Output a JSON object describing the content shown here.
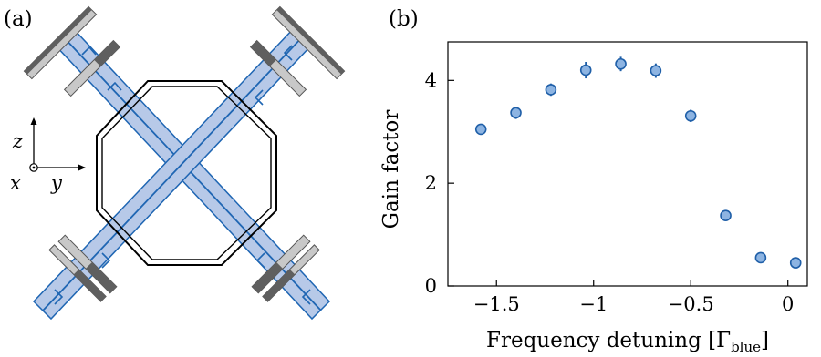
{
  "panels": {
    "a": {
      "label": "(a)"
    },
    "b": {
      "label": "(b)"
    }
  },
  "axes_inset": {
    "z": "z",
    "x": "x",
    "y": "y"
  },
  "colors": {
    "beam_fill": "#b7c9e8",
    "beam_edge": "#1f66b3",
    "mirror_light": "#c8c8c8",
    "mirror_dark": "#5f5f5f",
    "marker_fill": "#8db4e2",
    "marker_edge": "#1f5fa8"
  },
  "chart_data": {
    "type": "scatter",
    "title": "",
    "xlabel": "Frequency detuning [Γ_blue]",
    "xlabel_main": "Frequency detuning [Γ",
    "xlabel_sub": "blue",
    "xlabel_close": "]",
    "ylabel": "Gain factor",
    "xlim": [
      -1.75,
      0.1
    ],
    "ylim": [
      0,
      4.75
    ],
    "xticks": [
      -1.5,
      -1,
      -0.5,
      0
    ],
    "xtick_labels": [
      "−1.5",
      "−1",
      "−0.5",
      "0"
    ],
    "yticks": [
      0,
      2,
      4
    ],
    "ytick_labels": [
      "0",
      "2",
      "4"
    ],
    "grid": false,
    "series": [
      {
        "x": [
          -1.58,
          -1.4,
          -1.22,
          -1.04,
          -0.86,
          -0.68,
          -0.5,
          -0.32,
          -0.14,
          0.04
        ],
        "y": [
          3.05,
          3.37,
          3.82,
          4.2,
          4.32,
          4.19,
          3.31,
          1.37,
          0.55,
          0.45
        ],
        "yerr": [
          0.08,
          0.12,
          0.12,
          0.16,
          0.14,
          0.14,
          0.12,
          0.05,
          0.04,
          0.04
        ]
      }
    ]
  }
}
